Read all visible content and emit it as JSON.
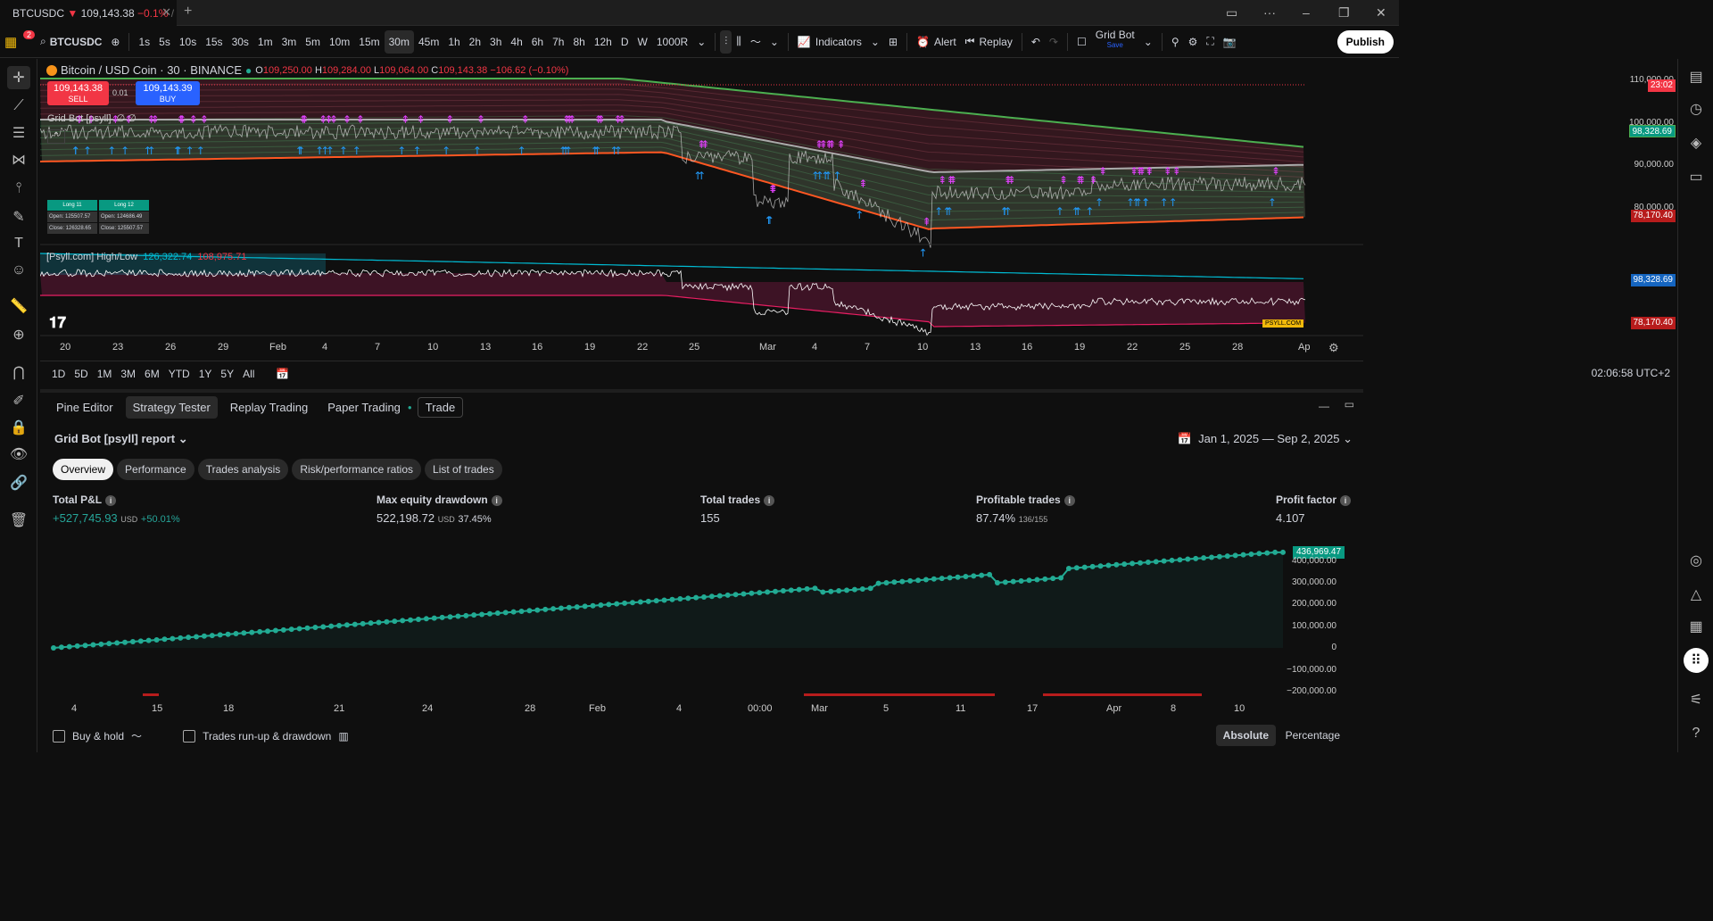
{
  "tab": {
    "symbol": "BTCUSDC",
    "price": "109,143.38",
    "change": "−0.1%",
    "trail": "/ ("
  },
  "toolbar": {
    "badge": "2",
    "symbol": "BTCUSDC",
    "intervals": [
      "1s",
      "5s",
      "10s",
      "15s",
      "30s",
      "1m",
      "3m",
      "5m",
      "10m",
      "15m",
      "30m",
      "45m",
      "1h",
      "2h",
      "3h",
      "4h",
      "6h",
      "7h",
      "8h",
      "12h",
      "D",
      "W",
      "1000R"
    ],
    "active_interval": "30m",
    "indicators": "Indicators",
    "alert": "Alert",
    "replay": "Replay",
    "layout_name": "Grid Bot",
    "layout_sub": "Save",
    "publish": "Publish"
  },
  "chart": {
    "title": "Bitcoin / USD Coin · 30 · BINANCE",
    "ohlc": {
      "o": "109,250.00",
      "h": "109,284.00",
      "l": "109,064.00",
      "c": "109,143.38",
      "chg": "−106.62 (−0.10%)"
    },
    "sell_price": "109,143.38",
    "sell_label": "SELL",
    "spread": "0.01",
    "buy_price": "109,143.39",
    "buy_label": "BUY",
    "indicator": "Grid Bot [psyll]",
    "indicator_vals": "∅ ∅",
    "table": {
      "h1": "Long 11",
      "h2": "Long 12",
      "o1": "Open: 125507.57",
      "o2": "Open: 124686.49",
      "c1": "Close: 126328.65",
      "c2": "Close: 125507.57"
    },
    "countdown": "23:02",
    "upper_tag": "98,328.69",
    "lower_tag": "78,170.40",
    "yticks": [
      "110,000.00",
      "100,000.00",
      "90,000.00",
      "80,000.00"
    ],
    "indicator2": "[Psyll.com] High/Low",
    "ind2_high": "126,322.74",
    "ind2_low": "108,975.71",
    "ind2_upper": "98,328.69",
    "ind2_lower": "78,170.40",
    "ind2_brand": "PSYLL.COM",
    "xticks": [
      "20",
      "23",
      "26",
      "29",
      "Feb",
      "4",
      "7",
      "10",
      "13",
      "16",
      "19",
      "22",
      "25",
      "Mar",
      "4",
      "7",
      "10",
      "13",
      "16",
      "19",
      "22",
      "25",
      "28",
      "Ap"
    ]
  },
  "timerange": {
    "ranges": [
      "1D",
      "5D",
      "1M",
      "3M",
      "6M",
      "YTD",
      "1Y",
      "5Y",
      "All"
    ],
    "clock": "02:06:58 UTC+2"
  },
  "panel": {
    "tabs": [
      "Pine Editor",
      "Strategy Tester",
      "Replay Trading",
      "Paper Trading",
      "Trade"
    ],
    "active_tab": "Strategy Tester",
    "report": "Grid Bot [psyll] report",
    "daterange": "Jan 1, 2025 — Sep 2, 2025",
    "subtabs": [
      "Overview",
      "Performance",
      "Trades analysis",
      "Risk/performance ratios",
      "List of trades"
    ],
    "metrics": {
      "pnl_label": "Total P&L",
      "pnl_val": "+527,745.93",
      "pnl_unit": "USD",
      "pnl_pct": "+50.01%",
      "dd_label": "Max equity drawdown",
      "dd_val": "522,198.72",
      "dd_unit": "USD",
      "dd_pct": "37.45%",
      "trades_label": "Total trades",
      "trades_val": "155",
      "prof_label": "Profitable trades",
      "prof_val": "87.74%",
      "prof_sub": "136/155",
      "pf_label": "Profit factor",
      "pf_val": "4.107"
    },
    "equity_tag": "436,969.47",
    "equity_yticks": [
      "400,000.00",
      "300,000.00",
      "200,000.00",
      "100,000.00",
      "0",
      "−100,000.00",
      "−200,000.00"
    ],
    "equity_xticks": [
      "4",
      "15",
      "18",
      "21",
      "24",
      "28",
      "Feb",
      "4",
      "00:00",
      "Mar",
      "5",
      "11",
      "17",
      "Apr",
      "8",
      "10"
    ],
    "buyhold": "Buy & hold",
    "runup": "Trades run-up & drawdown",
    "absolute": "Absolute",
    "percentage": "Percentage"
  },
  "colors": {
    "accent": "#2962ff",
    "down": "#f23645",
    "up": "#26a69a",
    "equity": "#22ab94",
    "magenta": "#e040fb"
  }
}
